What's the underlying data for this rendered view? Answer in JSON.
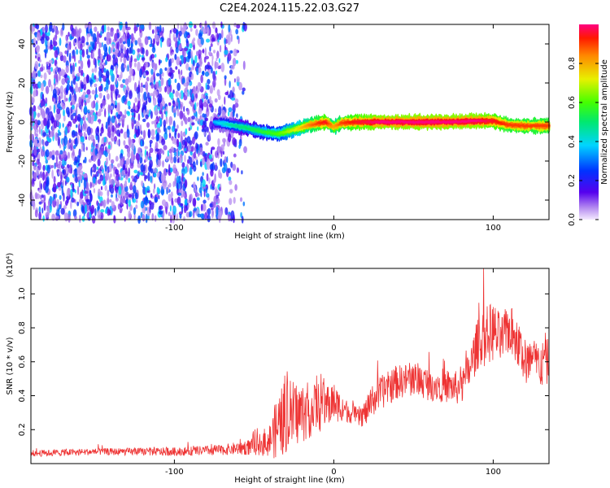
{
  "page_title": "C2E4.2024.115.22.03.G27",
  "chart_data": [
    {
      "type": "heatmap",
      "xlabel": "Height of straight line (km)",
      "ylabel": "Frequency (Hz)",
      "xlim": [
        -190,
        135
      ],
      "ylim": [
        -50,
        50
      ],
      "x_ticks": [
        -100,
        0,
        100
      ],
      "y_ticks": [
        -40,
        -20,
        0,
        20,
        40
      ],
      "grid": false,
      "colorbar": {
        "label": "Normalized spectral amplitude",
        "range": [
          0.0,
          1.0
        ],
        "ticks": [
          0.0,
          0.2,
          0.4,
          0.6,
          0.8
        ],
        "tick_labels": [
          "0.0",
          "0.2",
          "0.4",
          "0.6",
          "0.8"
        ],
        "colormap": "rainbow"
      },
      "noise_region_x": [
        -190,
        -55
      ],
      "noise_amplitude_range": [
        0.05,
        0.4
      ],
      "ridge": {
        "x": [
          -75,
          -65,
          -55,
          -45,
          -35,
          -25,
          -15,
          -5,
          0,
          5,
          15,
          30,
          50,
          70,
          90,
          100,
          110,
          120,
          135
        ],
        "frequency": [
          0,
          -1.5,
          -3,
          -5,
          -6,
          -4,
          -1.5,
          0,
          -2.5,
          -0.5,
          0,
          0,
          0,
          0,
          0.5,
          0.5,
          -1.5,
          -2,
          -2
        ],
        "amplitude": [
          0.35,
          0.45,
          0.5,
          0.55,
          0.6,
          0.7,
          0.85,
          0.95,
          0.8,
          0.9,
          0.95,
          1.0,
          1.0,
          1.0,
          1.0,
          0.95,
          0.9,
          0.9,
          0.9
        ]
      }
    },
    {
      "type": "line",
      "xlabel": "Height of straight line (km)",
      "ylabel": "SNR (10 * v/v)",
      "y_multiplier": "(x10⁴)",
      "xlim": [
        -190,
        135
      ],
      "ylim": [
        0,
        1.15
      ],
      "x_ticks": [
        -100,
        0,
        100
      ],
      "y_ticks": [
        0.2,
        0.4,
        0.6,
        0.8,
        1.0
      ],
      "y_tick_labels": [
        "0.2",
        "0.4",
        "0.6",
        "0.8",
        "1.0"
      ],
      "grid": false,
      "series": [
        {
          "color": "#ee3333",
          "envelope_x": [
            -190,
            -150,
            -100,
            -70,
            -50,
            -40,
            -35,
            -30,
            -20,
            -10,
            0,
            5,
            10,
            15,
            20,
            25,
            30,
            40,
            50,
            60,
            70,
            80,
            85,
            90,
            95,
            100,
            105,
            110,
            115,
            120,
            125,
            130,
            135
          ],
          "envelope_mean": [
            0.06,
            0.07,
            0.07,
            0.08,
            0.1,
            0.14,
            0.22,
            0.28,
            0.3,
            0.33,
            0.36,
            0.33,
            0.3,
            0.27,
            0.3,
            0.38,
            0.42,
            0.48,
            0.5,
            0.47,
            0.46,
            0.44,
            0.55,
            0.7,
            0.75,
            0.78,
            0.72,
            0.8,
            0.72,
            0.6,
            0.6,
            0.58,
            0.6
          ],
          "noise_scale": [
            0.02,
            0.02,
            0.025,
            0.03,
            0.05,
            0.1,
            0.2,
            0.22,
            0.18,
            0.15,
            0.12,
            0.08,
            0.06,
            0.06,
            0.08,
            0.1,
            0.1,
            0.1,
            0.1,
            0.1,
            0.1,
            0.1,
            0.12,
            0.15,
            0.18,
            0.18,
            0.15,
            0.15,
            0.15,
            0.15,
            0.14,
            0.14,
            0.14
          ],
          "peak_value": 1.15,
          "peak_x": 94
        }
      ]
    }
  ]
}
